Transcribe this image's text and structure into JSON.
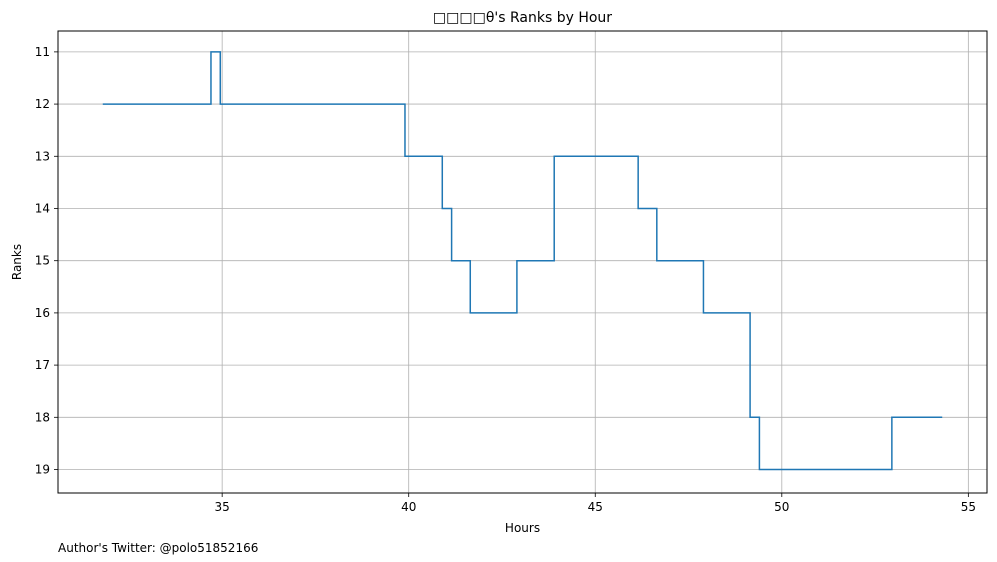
{
  "chart_data": {
    "type": "line",
    "step": true,
    "title": "□□□□θ's Ranks by Hour",
    "xlabel": "Hours",
    "ylabel": "Ranks",
    "xlim": [
      30.6,
      55.5
    ],
    "ylim": [
      19.45,
      10.6
    ],
    "y_inverted": true,
    "grid": true,
    "x_ticks": [
      35,
      40,
      45,
      50,
      55
    ],
    "y_ticks": [
      11,
      12,
      13,
      14,
      15,
      16,
      17,
      18,
      19
    ],
    "series": [
      {
        "color": "#1f77b4",
        "x": [
          31.8,
          34.7,
          34.95,
          39.9,
          40.9,
          41.15,
          41.65,
          42.9,
          43.9,
          46.15,
          46.65,
          47.9,
          49.15,
          49.4,
          52.95,
          54.3
        ],
        "y": [
          12,
          11,
          12,
          13,
          14,
          15,
          16,
          15,
          13,
          14,
          15,
          16,
          18,
          19,
          18,
          18
        ]
      }
    ],
    "annotations": [
      {
        "text": "Author's Twitter: @polo51852166"
      }
    ]
  }
}
